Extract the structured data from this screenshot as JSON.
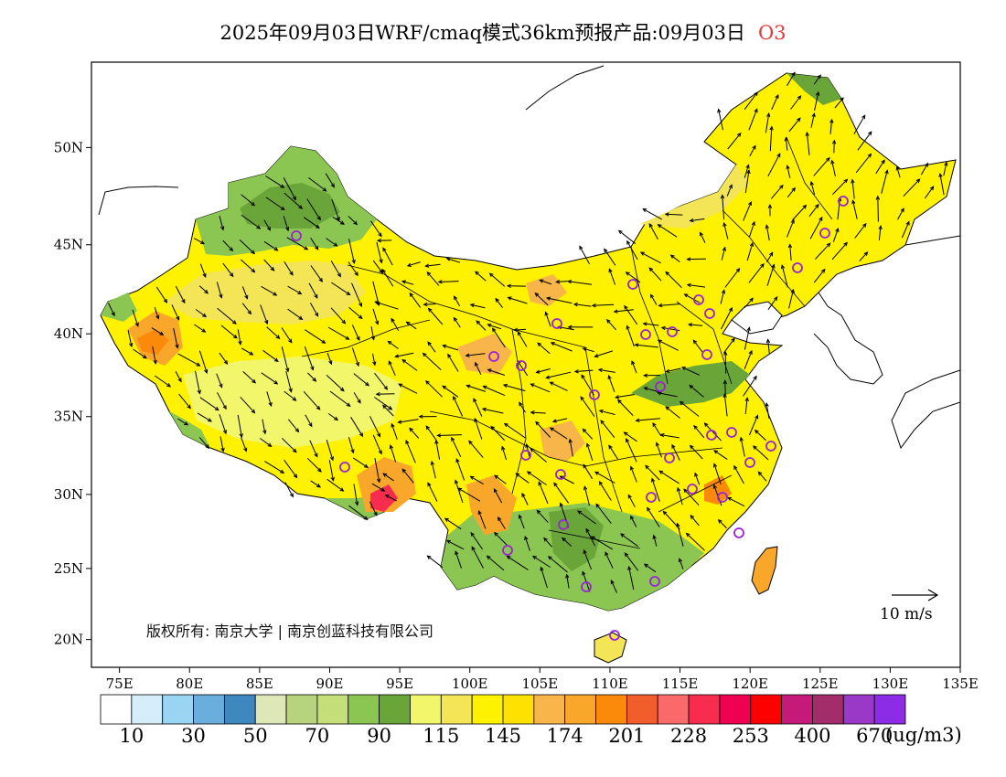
{
  "title": {
    "main": "2025年09月03日WRF/cmaq模式36km预报产品:09月03日",
    "species": "O3"
  },
  "map": {
    "longitude_ticks": [
      "75E",
      "80E",
      "85E",
      "90E",
      "95E",
      "100E",
      "105E",
      "110E",
      "115E",
      "120E",
      "125E",
      "130E",
      "135E"
    ],
    "latitude_ticks": [
      "50N",
      "45N",
      "40N",
      "35N",
      "30N",
      "25N",
      "20N"
    ],
    "lon_range": [
      73,
      135
    ],
    "lat_range": [
      18,
      54
    ]
  },
  "copyright": "版权所有: 南京大学 | 南京创蓝科技有限公司",
  "wind_reference": {
    "label": "10 m/s",
    "speed": 10
  },
  "legend": {
    "unit": "(ug/m3)",
    "labels": [
      "10",
      "30",
      "50",
      "70",
      "90",
      "115",
      "145",
      "174",
      "201",
      "228",
      "253",
      "400",
      "670"
    ],
    "colors": [
      "#ffffff",
      "#d6eefa",
      "#9ad4f3",
      "#6aaedd",
      "#3f87bf",
      "#dde7b8",
      "#b8d37e",
      "#c4de7a",
      "#8cc652",
      "#6aa53a",
      "#f2f66a",
      "#f3e556",
      "#fff200",
      "#ffe100",
      "#f7b54a",
      "#f9a72a",
      "#fb8a0a",
      "#f25e2b",
      "#fa6a6a",
      "#f72c4e",
      "#f00050",
      "#ff0000",
      "#c61a7a",
      "#a22d6a",
      "#9a38c8",
      "#8d2ce6"
    ]
  },
  "colors": {
    "stations": "#9a22d8",
    "border": "#000000",
    "title_species": "#e23a3a"
  }
}
